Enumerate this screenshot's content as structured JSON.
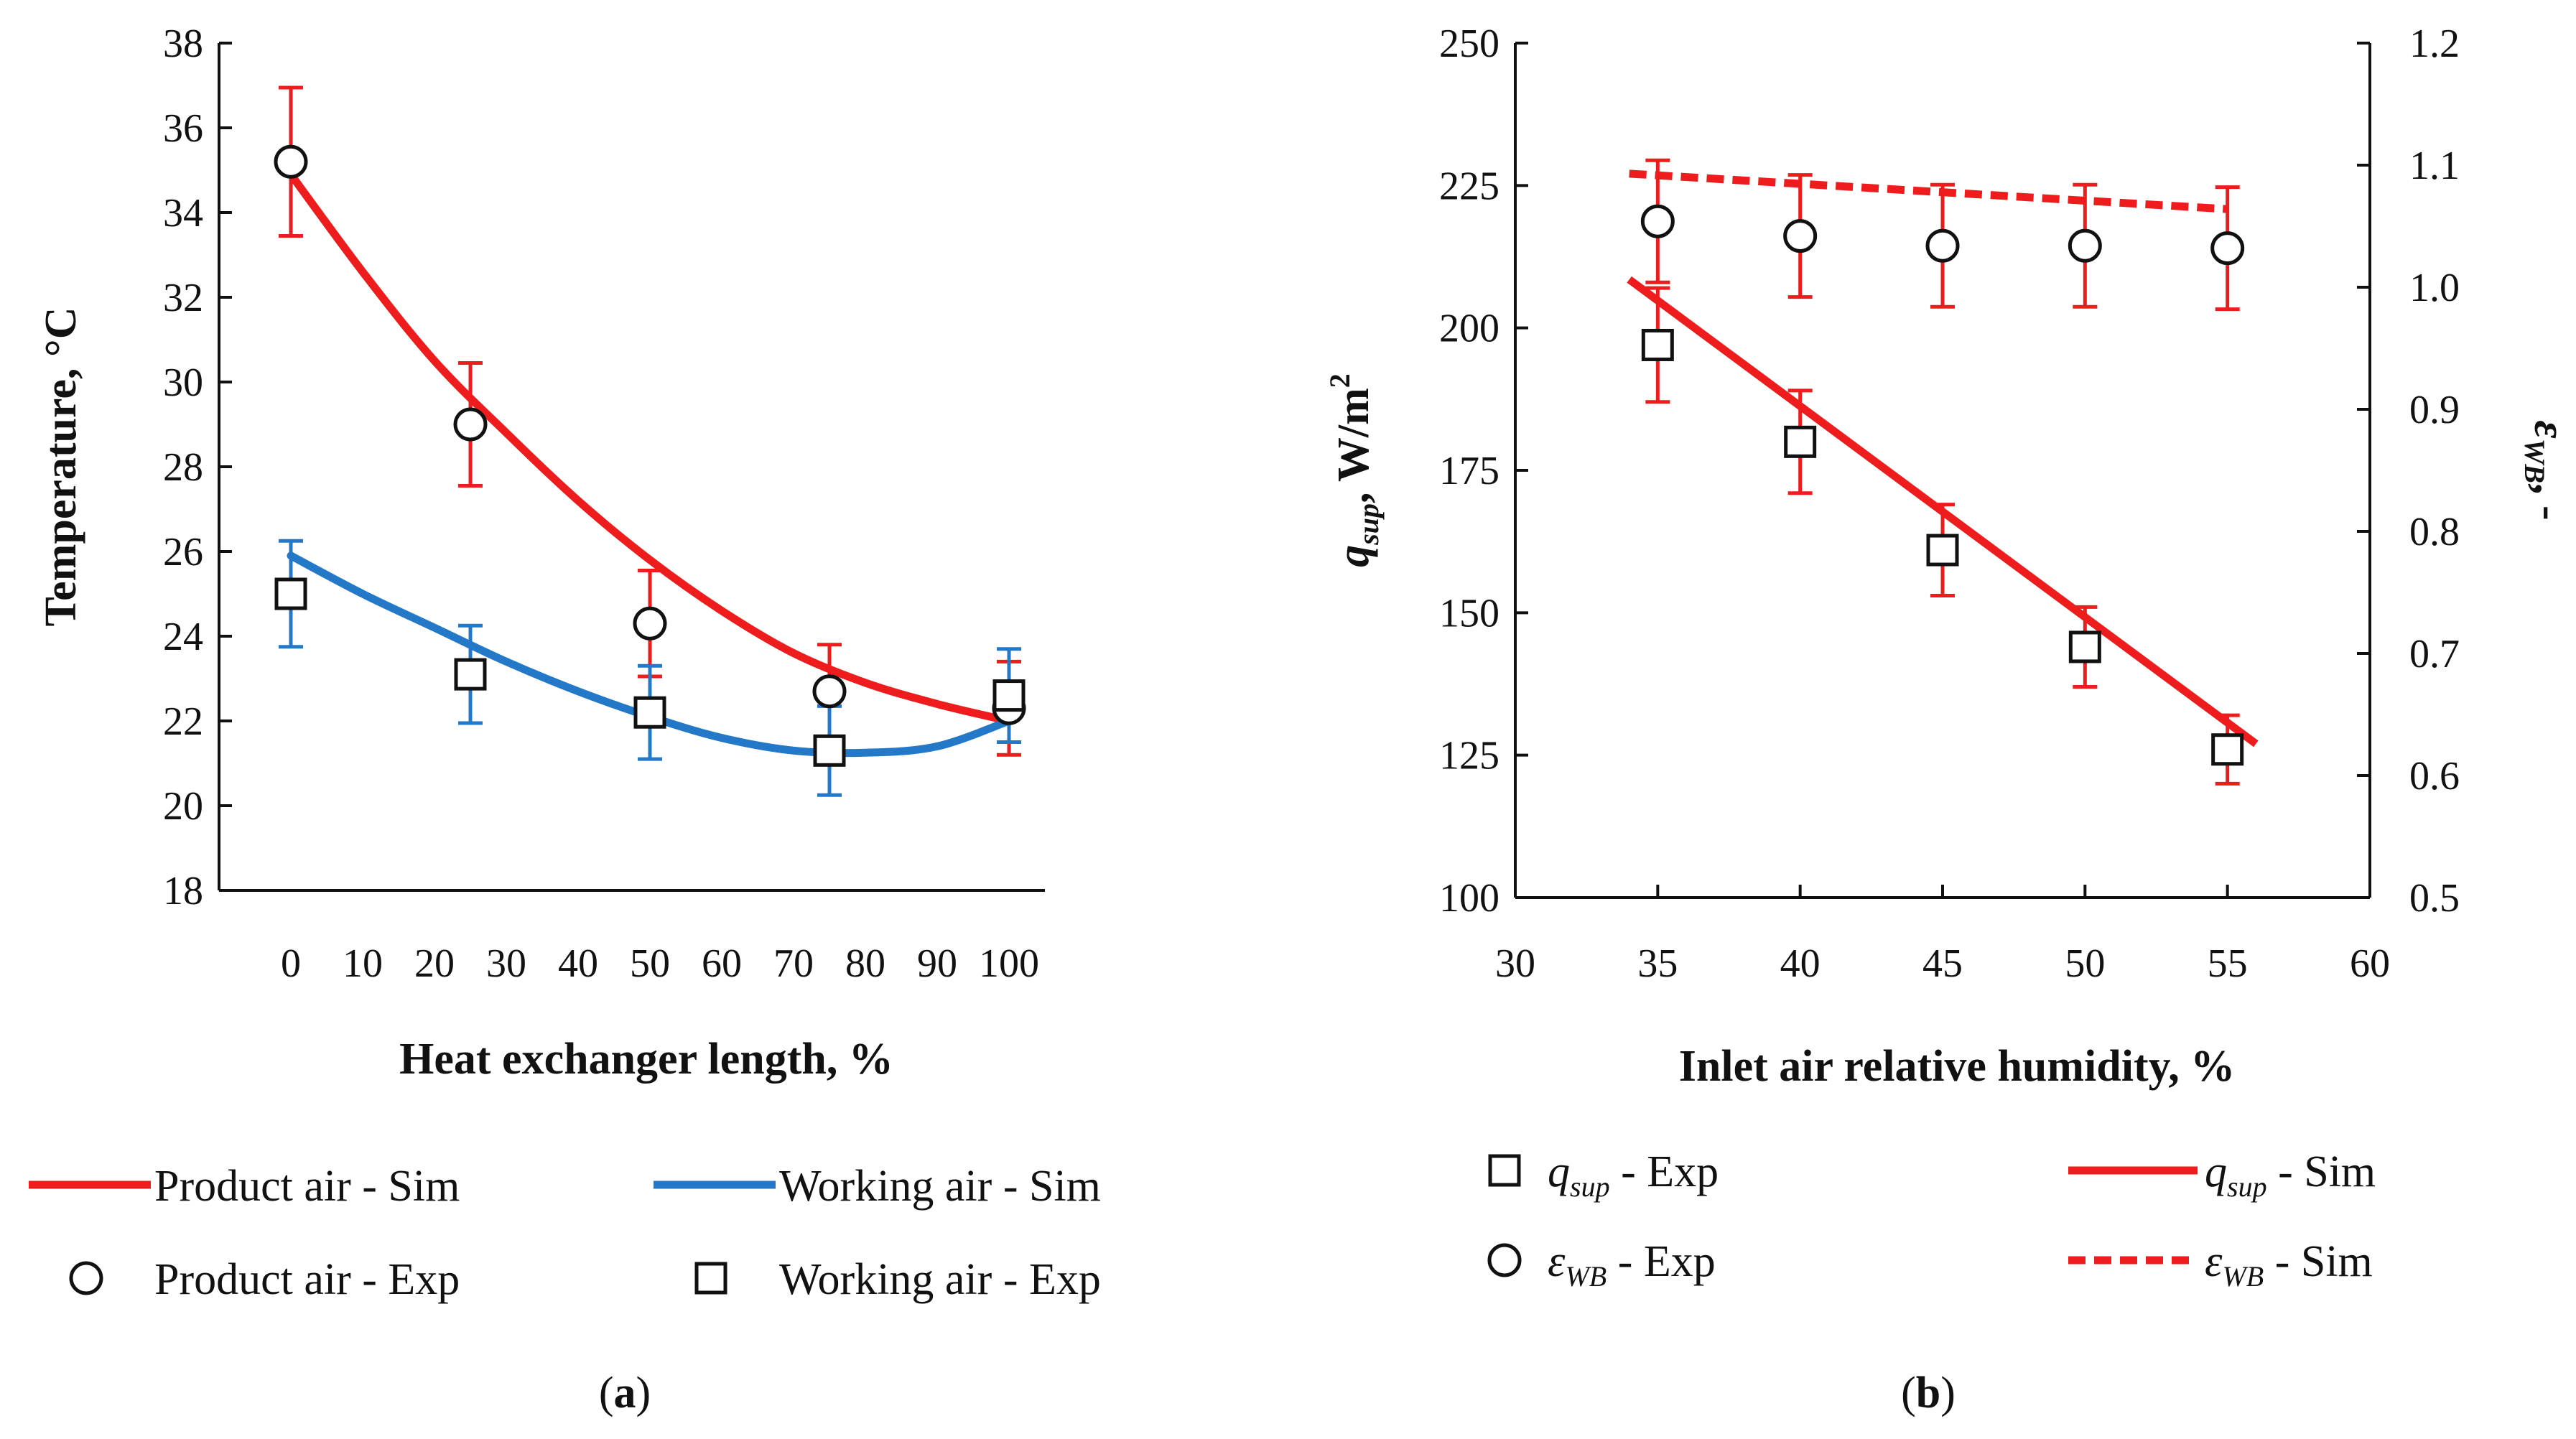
{
  "colors": {
    "red": "#ee1c1c",
    "blue": "#2478c8",
    "axis": "#111111"
  },
  "chart_data": [
    {
      "id": "a",
      "type": "line",
      "caption": "a",
      "xlabel": "Heat exchanger length, %",
      "ylabel": "Temperature, °C",
      "xlim": [
        -10,
        105
      ],
      "ylim": [
        18,
        38
      ],
      "xticks": [
        0,
        10,
        20,
        30,
        40,
        50,
        60,
        70,
        80,
        90,
        100
      ],
      "yticks": [
        18,
        20,
        22,
        24,
        26,
        28,
        30,
        32,
        34,
        36,
        38
      ],
      "series": [
        {
          "name": "Product air - Sim",
          "kind": "line",
          "color": "#ee1c1c",
          "x": [
            0,
            10,
            20,
            30,
            40,
            50,
            60,
            70,
            80,
            90,
            100
          ],
          "y": [
            34.9,
            32.6,
            30.5,
            28.8,
            27.2,
            25.8,
            24.6,
            23.6,
            22.9,
            22.4,
            22.0
          ]
        },
        {
          "name": "Working air - Sim",
          "kind": "line",
          "color": "#2478c8",
          "x": [
            0,
            10,
            20,
            30,
            40,
            50,
            60,
            70,
            80,
            90,
            100
          ],
          "y": [
            25.9,
            25.0,
            24.2,
            23.4,
            22.7,
            22.1,
            21.6,
            21.3,
            21.25,
            21.4,
            22.0
          ]
        },
        {
          "name": "Product air - Exp",
          "kind": "marker",
          "marker": "circle",
          "errcolor": "#ee1c1c",
          "x": [
            0,
            25,
            50,
            75,
            100
          ],
          "y": [
            35.2,
            29.0,
            24.3,
            22.7,
            22.3
          ],
          "err": [
            1.75,
            1.45,
            1.25,
            1.1,
            1.1
          ]
        },
        {
          "name": "Working air - Exp",
          "kind": "marker",
          "marker": "square",
          "errcolor": "#2478c8",
          "x": [
            0,
            25,
            50,
            75,
            100
          ],
          "y": [
            25.0,
            23.1,
            22.2,
            21.3,
            22.6
          ],
          "err": [
            1.25,
            1.15,
            1.1,
            1.05,
            1.1
          ]
        }
      ],
      "legend": [
        {
          "label": "Product air - Sim",
          "kind": "line",
          "color": "#ee1c1c"
        },
        {
          "label": "Working air - Sim",
          "kind": "line",
          "color": "#2478c8"
        },
        {
          "label": "Product air - Exp",
          "kind": "circle"
        },
        {
          "label": "Working air - Exp",
          "kind": "square"
        }
      ]
    },
    {
      "id": "b",
      "type": "line",
      "caption": "b",
      "xlabel": "Inlet air relative humidity, %",
      "ylabel_left": {
        "sym": "q",
        "sub": "sup",
        "rest": ", W/m",
        "sup": "2"
      },
      "ylabel_right": {
        "sym": "ε",
        "sub": "WB",
        "rest": ", -"
      },
      "xlim": [
        30,
        60
      ],
      "ylim_left": [
        100,
        250
      ],
      "ylim_right": [
        0.5,
        1.2
      ],
      "xticks": [
        30,
        35,
        40,
        45,
        50,
        55,
        60
      ],
      "yticks_left": [
        100,
        125,
        150,
        175,
        200,
        225,
        250
      ],
      "yticks_right": [
        "0.5",
        "0.6",
        "0.7",
        "0.8",
        "0.9",
        "1.0",
        "1.1",
        "1.2"
      ],
      "series": [
        {
          "name": "q_sup - Sim",
          "kind": "line",
          "axis": "left",
          "color": "#ee1c1c",
          "x": [
            34,
            56
          ],
          "y": [
            208.5,
            127
          ]
        },
        {
          "name": "ε_WB - Sim",
          "kind": "dashed",
          "axis": "right",
          "color": "#ee1c1c",
          "x": [
            34,
            55
          ],
          "y": [
            1.093,
            1.064
          ]
        },
        {
          "name": "q_sup - Exp",
          "kind": "marker",
          "marker": "square",
          "axis": "left",
          "errcolor": "#ee1c1c",
          "x": [
            35,
            40,
            45,
            50,
            55
          ],
          "y": [
            197,
            180,
            161,
            144,
            126
          ],
          "err": [
            10,
            9,
            8,
            7,
            6
          ]
        },
        {
          "name": "ε_WB - Exp",
          "kind": "marker",
          "marker": "circle",
          "axis": "right",
          "errcolor": "#ee1c1c",
          "x": [
            35,
            40,
            45,
            50,
            55
          ],
          "y": [
            1.054,
            1.042,
            1.034,
            1.034,
            1.032
          ],
          "err": [
            0.05,
            0.05,
            0.05,
            0.05,
            0.05
          ]
        }
      ],
      "legend": [
        {
          "sym": "q",
          "sub": "sup",
          "rest": " - Exp",
          "kind": "square"
        },
        {
          "sym": "q",
          "sub": "sup",
          "rest": " - Sim",
          "kind": "line",
          "color": "#ee1c1c"
        },
        {
          "sym": "ε",
          "sub": "WB",
          "rest": " - Exp",
          "kind": "circle"
        },
        {
          "sym": "ε",
          "sub": "WB",
          "rest": " - Sim",
          "kind": "dashed",
          "color": "#ee1c1c"
        }
      ]
    }
  ]
}
